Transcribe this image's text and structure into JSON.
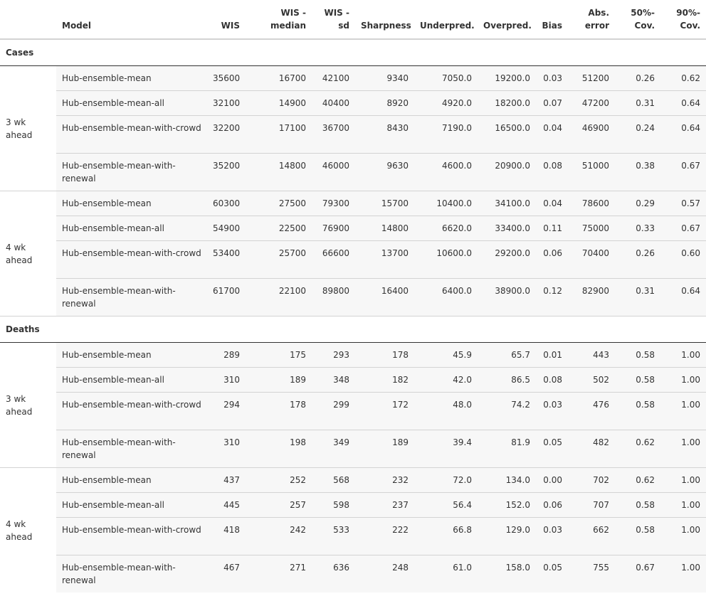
{
  "headers": {
    "horizon": "",
    "model": "Model",
    "wis": "WIS",
    "wis_median": "WIS - median",
    "wis_sd": "WIS - sd",
    "sharpness": "Sharpness",
    "underpred": "Underpred.",
    "overpred": "Overpred.",
    "bias": "Bias",
    "abs_error": "Abs. error",
    "cov50": "50%-Cov.",
    "cov90": "90%-Cov."
  },
  "groups": [
    {
      "label": "Cases",
      "horizons": [
        {
          "label": "3 wk ahead",
          "rows": [
            {
              "model": "Hub-ensemble-mean",
              "wis": "35600",
              "wis_median": "16700",
              "wis_sd": "42100",
              "sharpness": "9340",
              "underpred": "7050.0",
              "overpred": "19200.0",
              "bias": "0.03",
              "abs_error": "51200",
              "cov50": "0.26",
              "cov90": "0.62"
            },
            {
              "model": "Hub-ensemble-mean-all",
              "wis": "32100",
              "wis_median": "14900",
              "wis_sd": "40400",
              "sharpness": "8920",
              "underpred": "4920.0",
              "overpred": "18200.0",
              "bias": "0.07",
              "abs_error": "47200",
              "cov50": "0.31",
              "cov90": "0.64"
            },
            {
              "model": "Hub-ensemble-mean-with-crowd",
              "wis": "32200",
              "wis_median": "17100",
              "wis_sd": "36700",
              "sharpness": "8430",
              "underpred": "7190.0",
              "overpred": "16500.0",
              "bias": "0.04",
              "abs_error": "46900",
              "cov50": "0.24",
              "cov90": "0.64"
            },
            {
              "model": "Hub-ensemble-mean-with-renewal",
              "wis": "35200",
              "wis_median": "14800",
              "wis_sd": "46000",
              "sharpness": "9630",
              "underpred": "4600.0",
              "overpred": "20900.0",
              "bias": "0.08",
              "abs_error": "51000",
              "cov50": "0.38",
              "cov90": "0.67"
            }
          ]
        },
        {
          "label": "4 wk ahead",
          "rows": [
            {
              "model": "Hub-ensemble-mean",
              "wis": "60300",
              "wis_median": "27500",
              "wis_sd": "79300",
              "sharpness": "15700",
              "underpred": "10400.0",
              "overpred": "34100.0",
              "bias": "0.04",
              "abs_error": "78600",
              "cov50": "0.29",
              "cov90": "0.57"
            },
            {
              "model": "Hub-ensemble-mean-all",
              "wis": "54900",
              "wis_median": "22500",
              "wis_sd": "76900",
              "sharpness": "14800",
              "underpred": "6620.0",
              "overpred": "33400.0",
              "bias": "0.11",
              "abs_error": "75000",
              "cov50": "0.33",
              "cov90": "0.67"
            },
            {
              "model": "Hub-ensemble-mean-with-crowd",
              "wis": "53400",
              "wis_median": "25700",
              "wis_sd": "66600",
              "sharpness": "13700",
              "underpred": "10600.0",
              "overpred": "29200.0",
              "bias": "0.06",
              "abs_error": "70400",
              "cov50": "0.26",
              "cov90": "0.60"
            },
            {
              "model": "Hub-ensemble-mean-with-renewal",
              "wis": "61700",
              "wis_median": "22100",
              "wis_sd": "89800",
              "sharpness": "16400",
              "underpred": "6400.0",
              "overpred": "38900.0",
              "bias": "0.12",
              "abs_error": "82900",
              "cov50": "0.31",
              "cov90": "0.64"
            }
          ]
        }
      ]
    },
    {
      "label": "Deaths",
      "horizons": [
        {
          "label": "3 wk ahead",
          "rows": [
            {
              "model": "Hub-ensemble-mean",
              "wis": "289",
              "wis_median": "175",
              "wis_sd": "293",
              "sharpness": "178",
              "underpred": "45.9",
              "overpred": "65.7",
              "bias": "0.01",
              "abs_error": "443",
              "cov50": "0.58",
              "cov90": "1.00"
            },
            {
              "model": "Hub-ensemble-mean-all",
              "wis": "310",
              "wis_median": "189",
              "wis_sd": "348",
              "sharpness": "182",
              "underpred": "42.0",
              "overpred": "86.5",
              "bias": "0.08",
              "abs_error": "502",
              "cov50": "0.58",
              "cov90": "1.00"
            },
            {
              "model": "Hub-ensemble-mean-with-crowd",
              "wis": "294",
              "wis_median": "178",
              "wis_sd": "299",
              "sharpness": "172",
              "underpred": "48.0",
              "overpred": "74.2",
              "bias": "0.03",
              "abs_error": "476",
              "cov50": "0.58",
              "cov90": "1.00"
            },
            {
              "model": "Hub-ensemble-mean-with-renewal",
              "wis": "310",
              "wis_median": "198",
              "wis_sd": "349",
              "sharpness": "189",
              "underpred": "39.4",
              "overpred": "81.9",
              "bias": "0.05",
              "abs_error": "482",
              "cov50": "0.62",
              "cov90": "1.00"
            }
          ]
        },
        {
          "label": "4 wk ahead",
          "rows": [
            {
              "model": "Hub-ensemble-mean",
              "wis": "437",
              "wis_median": "252",
              "wis_sd": "568",
              "sharpness": "232",
              "underpred": "72.0",
              "overpred": "134.0",
              "bias": "0.00",
              "abs_error": "702",
              "cov50": "0.62",
              "cov90": "1.00"
            },
            {
              "model": "Hub-ensemble-mean-all",
              "wis": "445",
              "wis_median": "257",
              "wis_sd": "598",
              "sharpness": "237",
              "underpred": "56.4",
              "overpred": "152.0",
              "bias": "0.06",
              "abs_error": "707",
              "cov50": "0.58",
              "cov90": "1.00"
            },
            {
              "model": "Hub-ensemble-mean-with-crowd",
              "wis": "418",
              "wis_median": "242",
              "wis_sd": "533",
              "sharpness": "222",
              "underpred": "66.8",
              "overpred": "129.0",
              "bias": "0.03",
              "abs_error": "662",
              "cov50": "0.58",
              "cov90": "1.00"
            },
            {
              "model": "Hub-ensemble-mean-with-renewal",
              "wis": "467",
              "wis_median": "271",
              "wis_sd": "636",
              "sharpness": "248",
              "underpred": "61.0",
              "overpred": "158.0",
              "bias": "0.05",
              "abs_error": "755",
              "cov50": "0.67",
              "cov90": "1.00"
            }
          ]
        }
      ]
    }
  ]
}
